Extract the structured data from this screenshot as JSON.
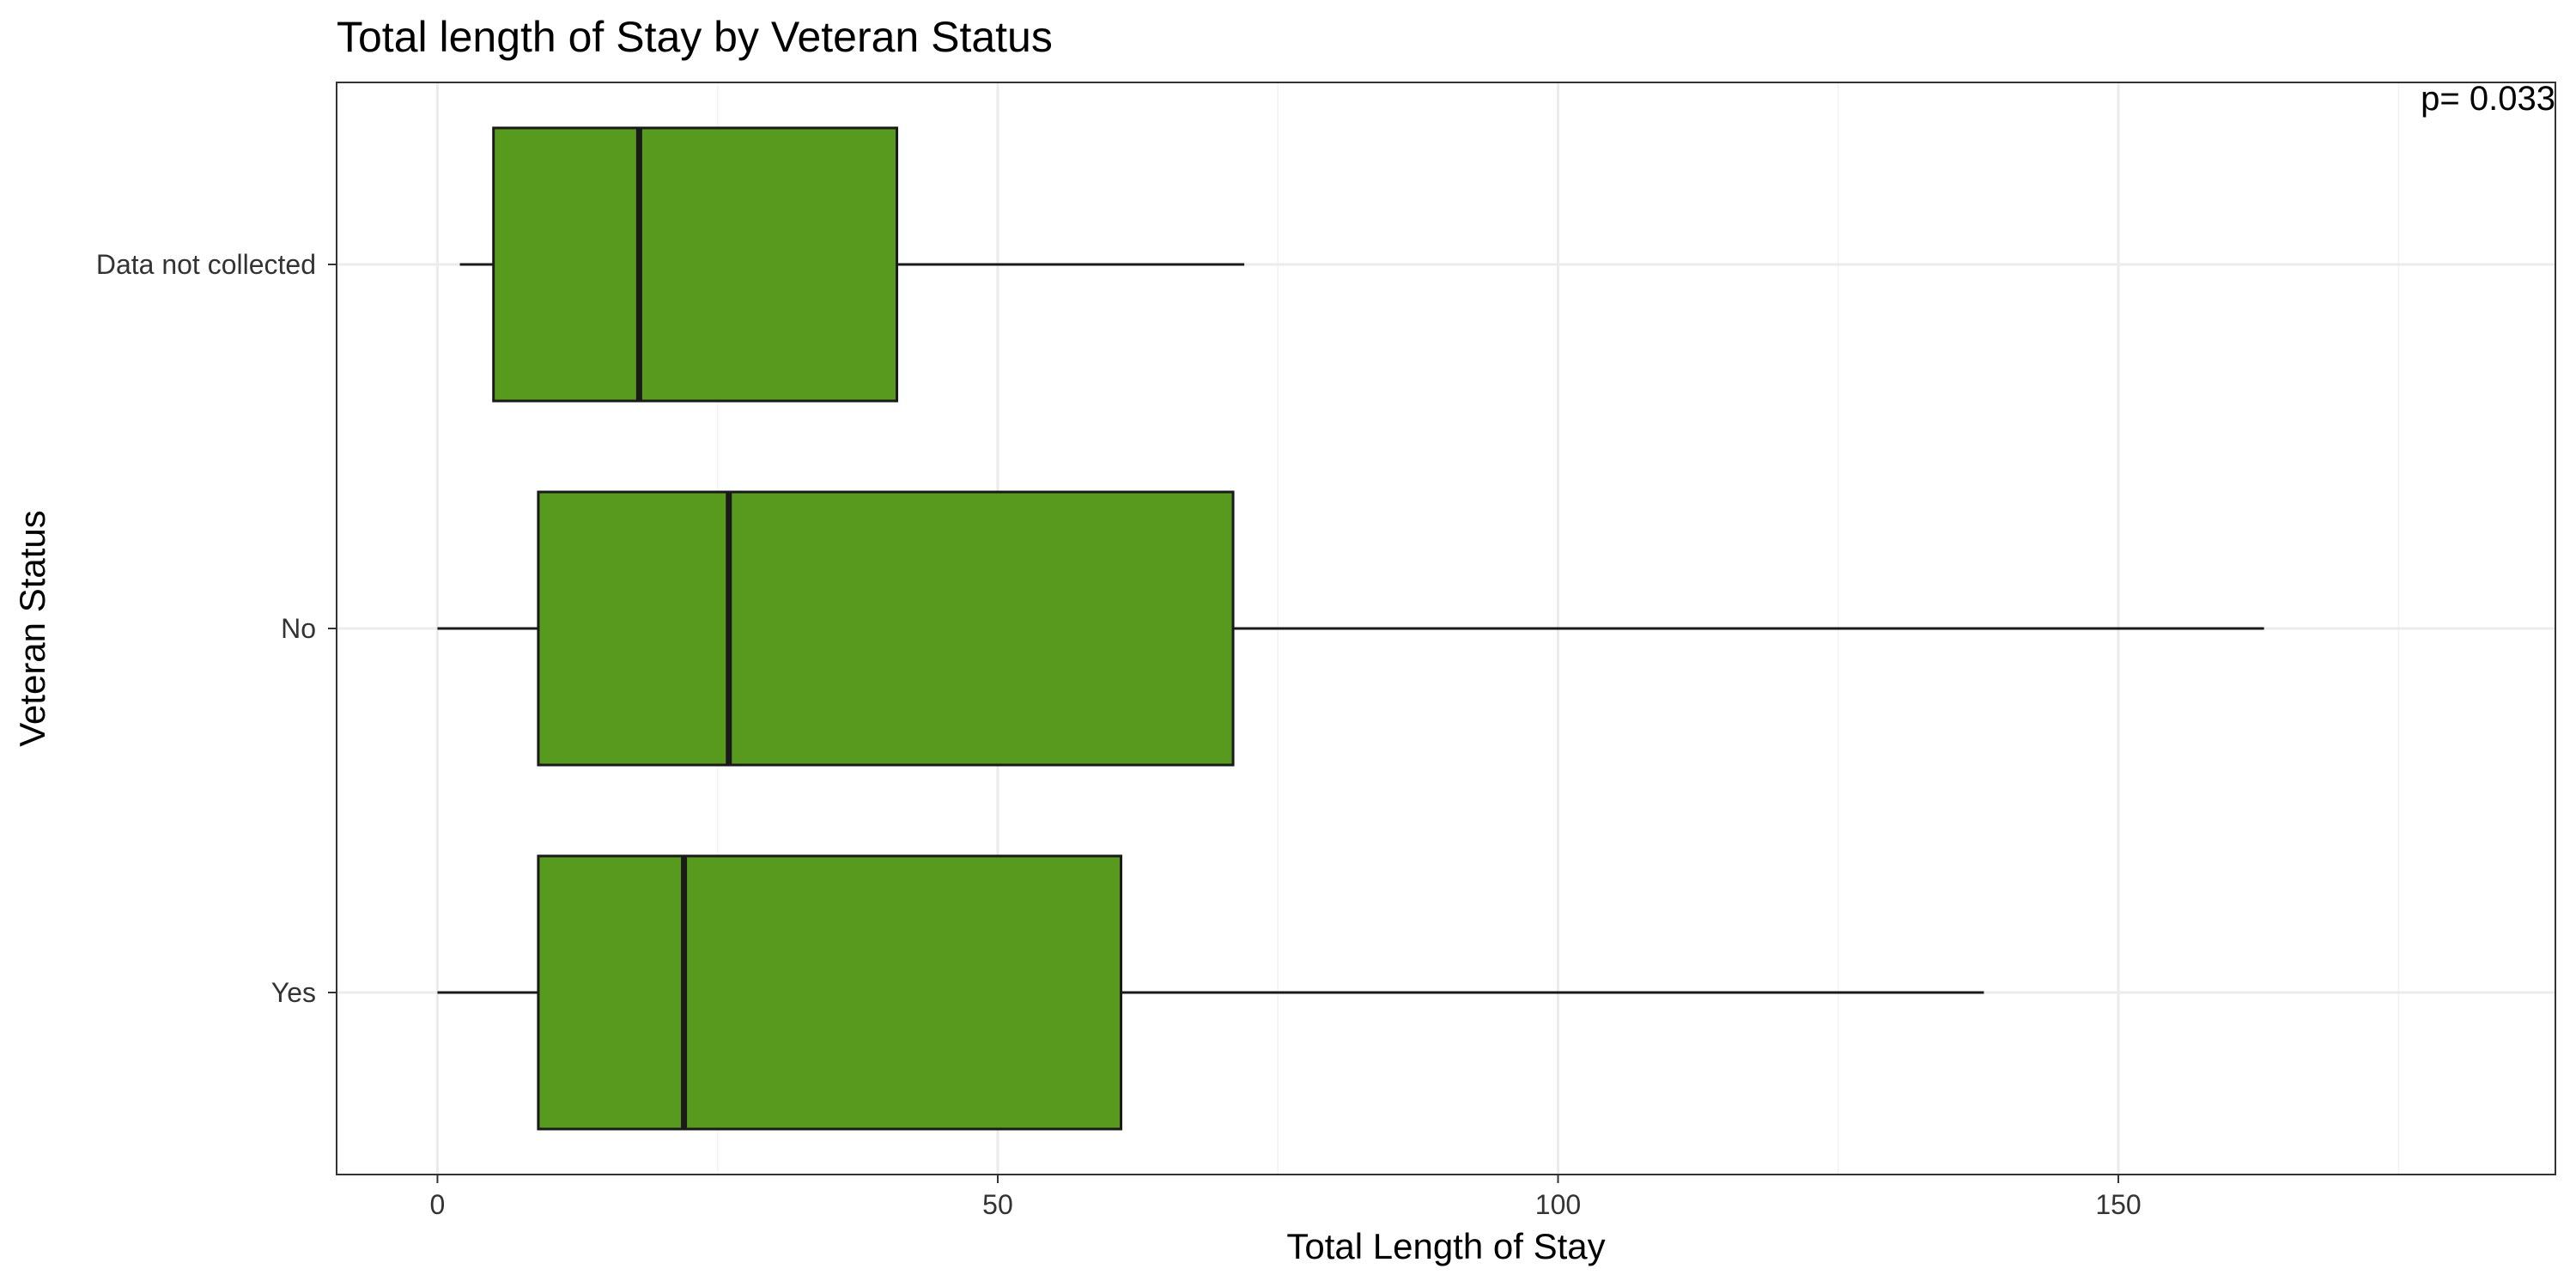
{
  "chart_data": {
    "type": "boxplot",
    "orientation": "horizontal",
    "title": "Total length of Stay by Veteran Status",
    "xlabel": "Total Length of Stay",
    "ylabel": "Veteran Status",
    "xlim": [
      -9,
      189
    ],
    "x_ticks": [
      0,
      50,
      100,
      150
    ],
    "x_tick_labels": [
      "0",
      "50",
      "100",
      "150"
    ],
    "x_minor_ticks": [
      25,
      75,
      125,
      175
    ],
    "grid": true,
    "legend": "none",
    "box_fill": "#589A1D",
    "box_stroke": "#1A1A1A",
    "annotation": "p= 0.033",
    "annotation_position": "top-right",
    "categories": [
      "Data not collected",
      "No",
      "Yes"
    ],
    "boxes": [
      {
        "category": "Data not collected",
        "whisker_low": 2,
        "q1": 5,
        "median": 18,
        "q3": 41,
        "whisker_high": 72
      },
      {
        "category": "No",
        "whisker_low": 0,
        "q1": 9,
        "median": 26,
        "q3": 71,
        "whisker_high": 163
      },
      {
        "category": "Yes",
        "whisker_low": 0,
        "q1": 9,
        "median": 22,
        "q3": 61,
        "whisker_high": 138
      }
    ]
  }
}
